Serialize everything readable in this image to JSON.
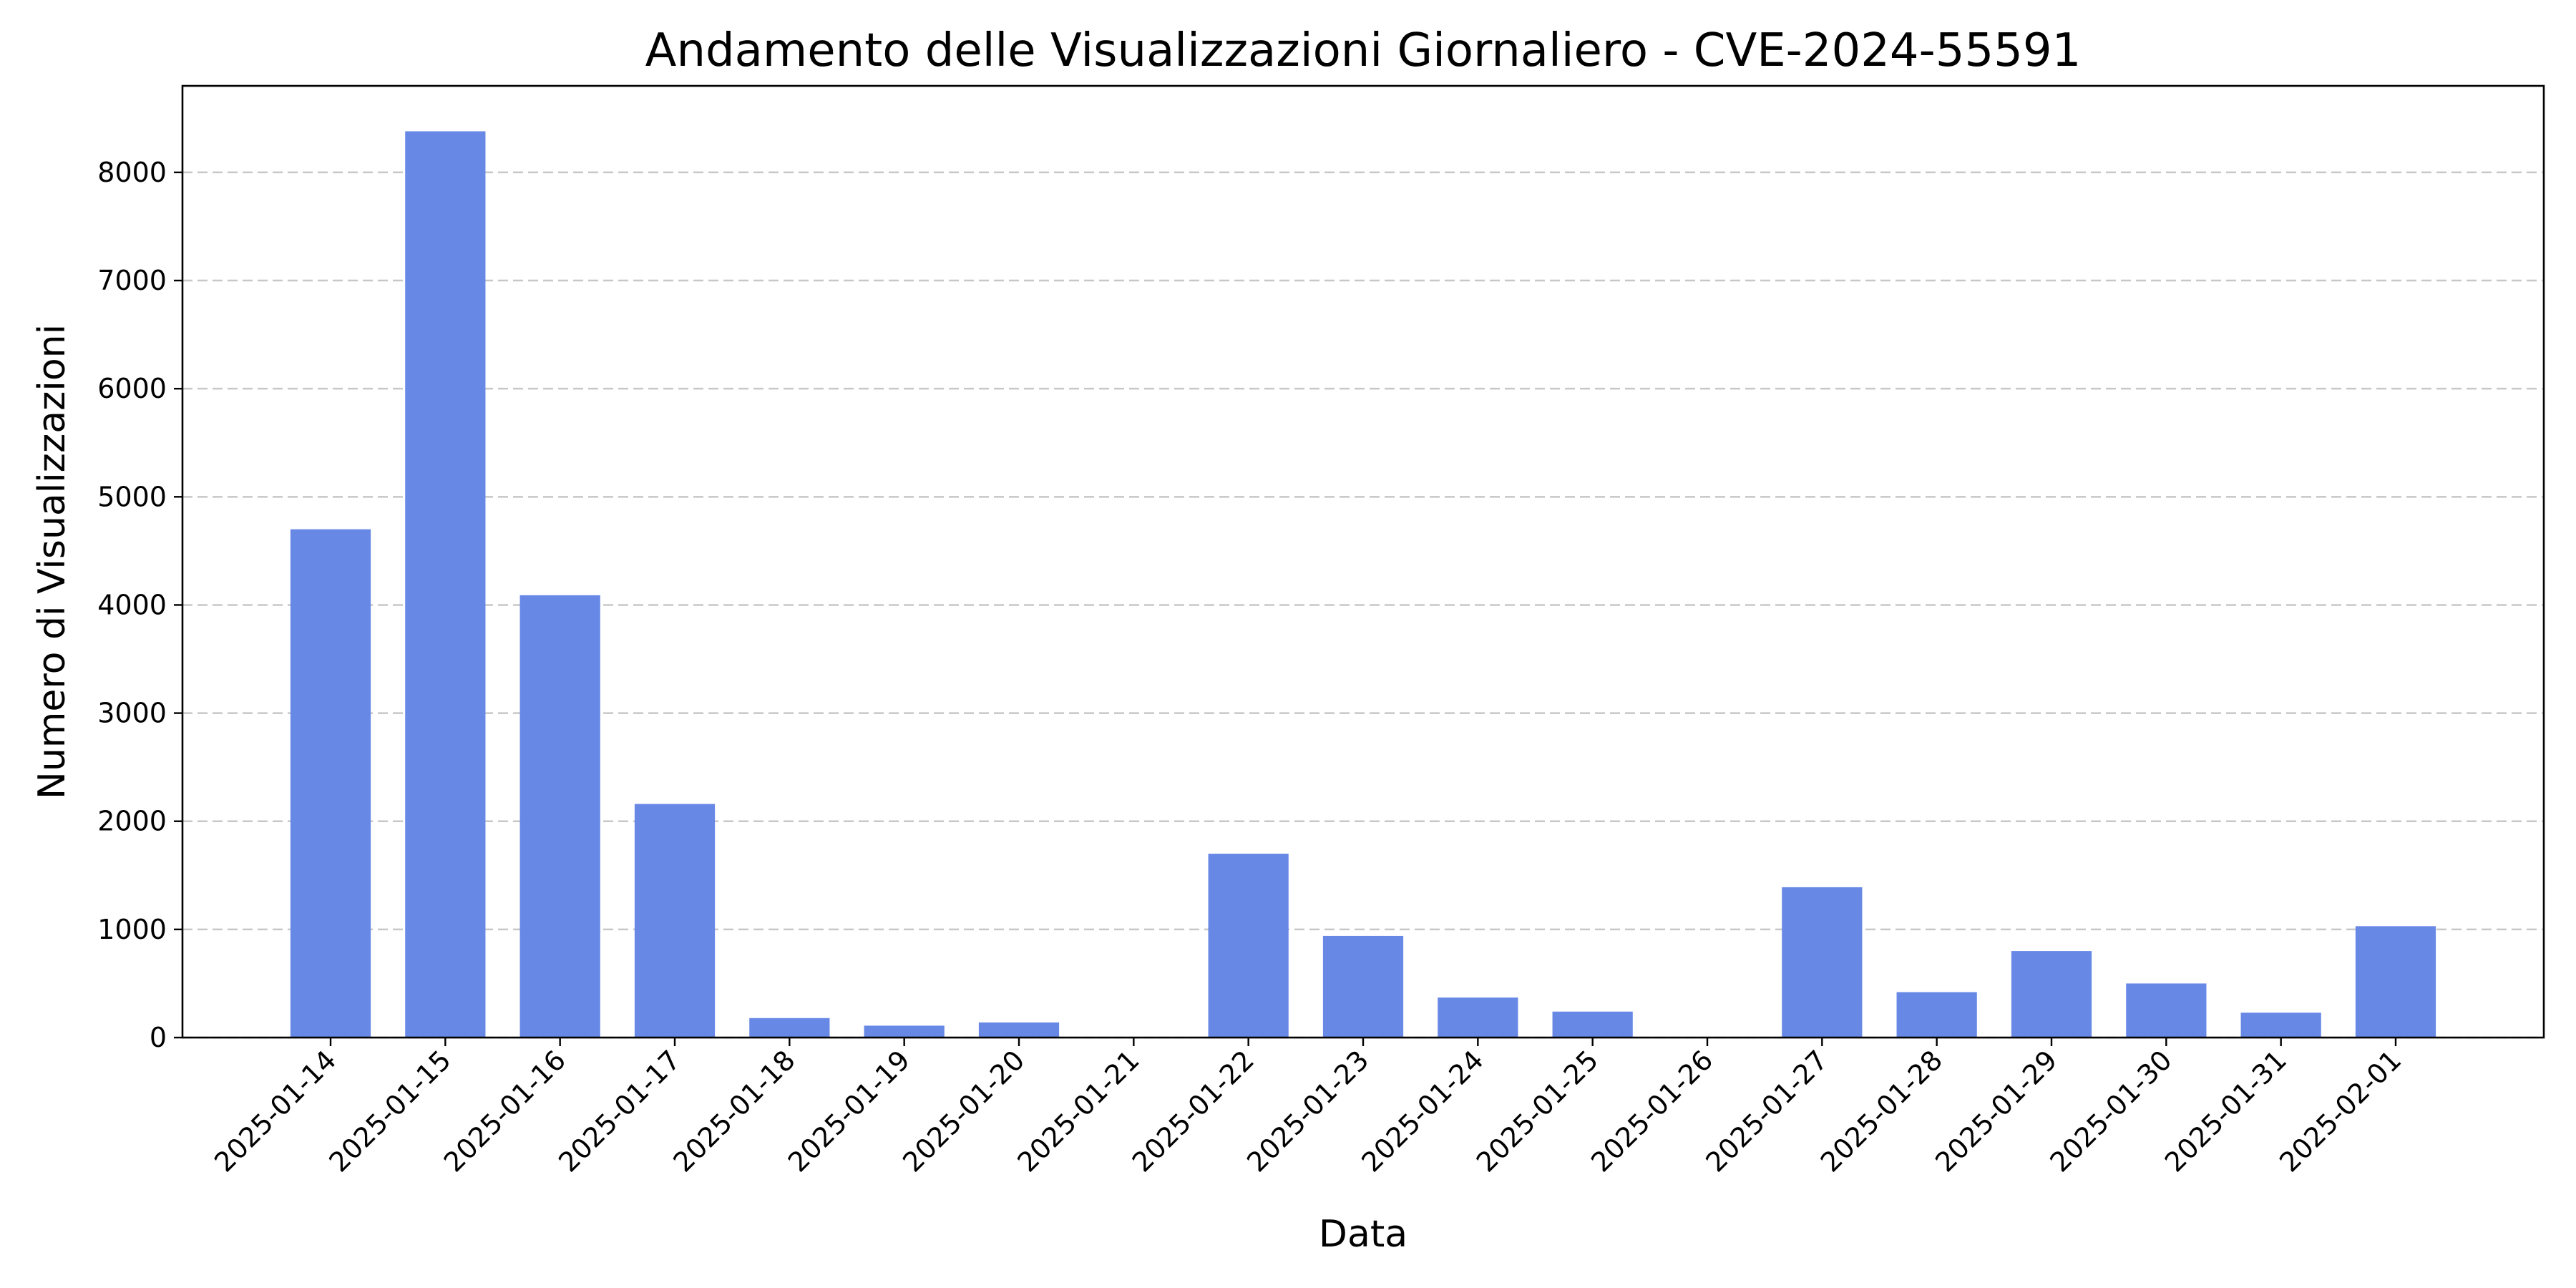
{
  "chart_data": {
    "type": "bar",
    "title": "Andamento delle Visualizzazioni Giornaliero - CVE-2024-55591",
    "xlabel": "Data",
    "ylabel": "Numero di Visualizzazioni",
    "categories": [
      "2025-01-14",
      "2025-01-15",
      "2025-01-16",
      "2025-01-17",
      "2025-01-18",
      "2025-01-19",
      "2025-01-20",
      "2025-01-21",
      "2025-01-22",
      "2025-01-23",
      "2025-01-24",
      "2025-01-25",
      "2025-01-26",
      "2025-01-27",
      "2025-01-28",
      "2025-01-29",
      "2025-01-30",
      "2025-01-31",
      "2025-02-01"
    ],
    "values": [
      4700,
      8380,
      4090,
      2160,
      180,
      110,
      140,
      0,
      1700,
      940,
      370,
      240,
      0,
      1390,
      420,
      800,
      500,
      230,
      1030
    ],
    "ylim": [
      0,
      8800
    ],
    "yticks": [
      0,
      1000,
      2000,
      3000,
      4000,
      5000,
      6000,
      7000,
      8000
    ],
    "grid": "y-dashed",
    "bar_color": "#6888e6"
  }
}
